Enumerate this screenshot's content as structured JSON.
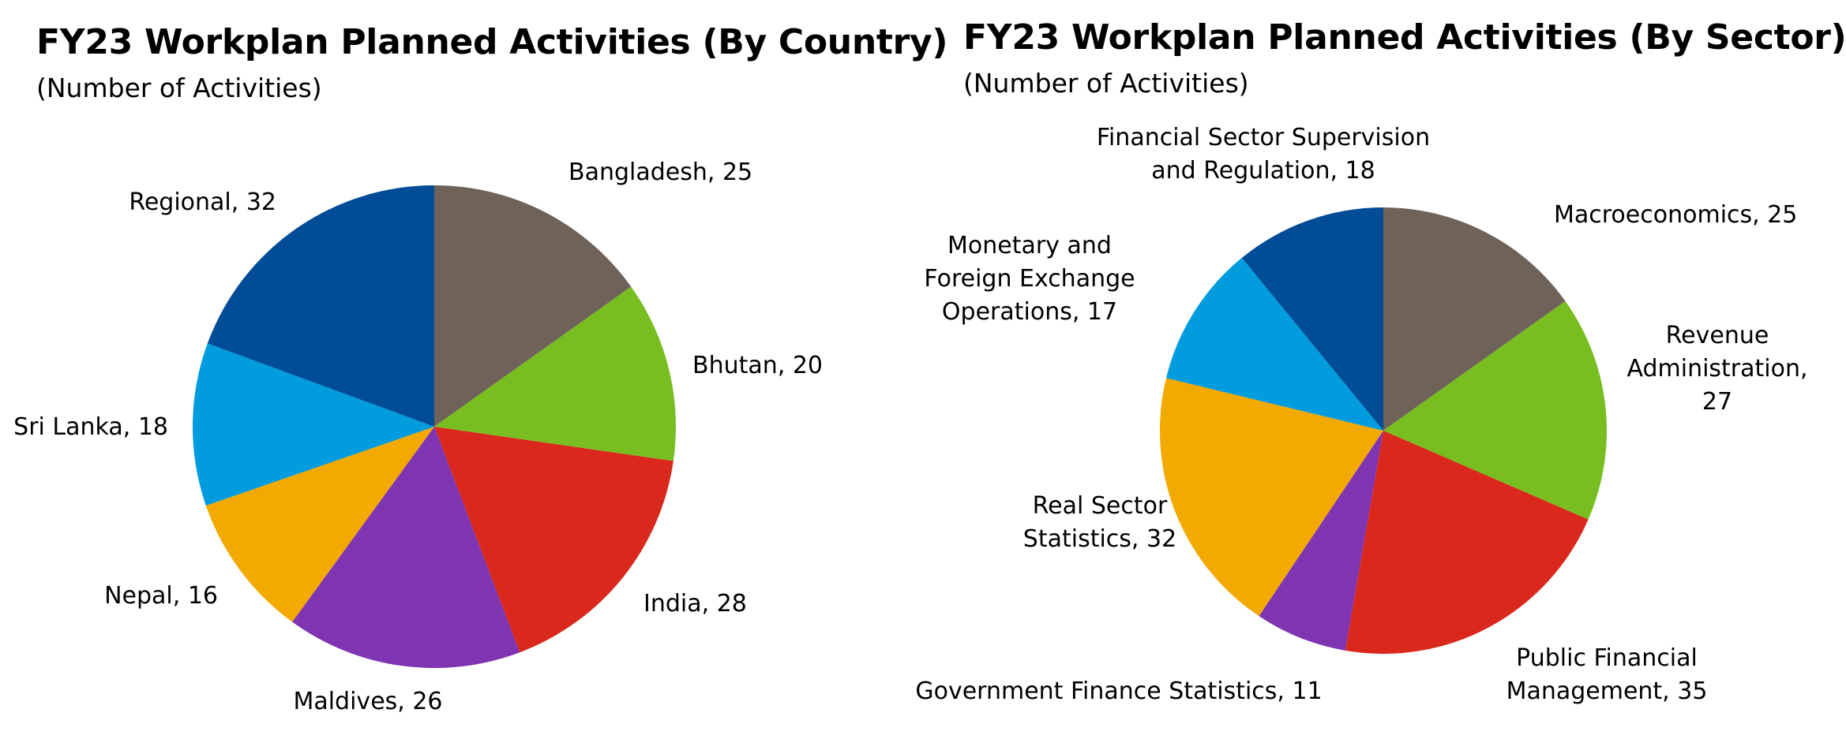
{
  "chart_data": [
    {
      "type": "pie",
      "title": "FY23 Workplan Planned Activities (By Country)",
      "subtitle": "(Number of Activities)",
      "slices": [
        {
          "label": "Bangladesh, 25",
          "value": 25,
          "color": "#6e6259"
        },
        {
          "label": "Bhutan, 20",
          "value": 20,
          "color": "#78be20"
        },
        {
          "label": "India, 28",
          "value": 28,
          "color": "#da291c"
        },
        {
          "label": "Maldives, 26",
          "value": 26,
          "color": "#7f35b2"
        },
        {
          "label": "Nepal, 16",
          "value": 16,
          "color": "#f2a900"
        },
        {
          "label": "Sri Lanka, 18",
          "value": 18,
          "color": "#009cde"
        },
        {
          "label": "Regional, 32",
          "value": 32,
          "color": "#004c97"
        }
      ]
    },
    {
      "type": "pie",
      "title": "FY23 Workplan Planned Activities (By Sector)",
      "subtitle": "(Number of Activities)",
      "slices": [
        {
          "label": "Macroeconomics, 25",
          "value": 25,
          "color": "#6e6259"
        },
        {
          "label": "Revenue\nAdministration,\n27",
          "value": 27,
          "color": "#78be20"
        },
        {
          "label": "Public Financial\nManagement, 35",
          "value": 35,
          "color": "#da291c"
        },
        {
          "label": "Government Finance Statistics, 11",
          "value": 11,
          "color": "#7f35b2"
        },
        {
          "label": "Real Sector\nStatistics, 32",
          "value": 32,
          "color": "#f2a900"
        },
        {
          "label": "Monetary and\nForeign Exchange\nOperations, 17",
          "value": 17,
          "color": "#009cde"
        },
        {
          "label": "Financial Sector Supervision\nand Regulation, 18",
          "value": 18,
          "color": "#004c97"
        }
      ]
    }
  ]
}
